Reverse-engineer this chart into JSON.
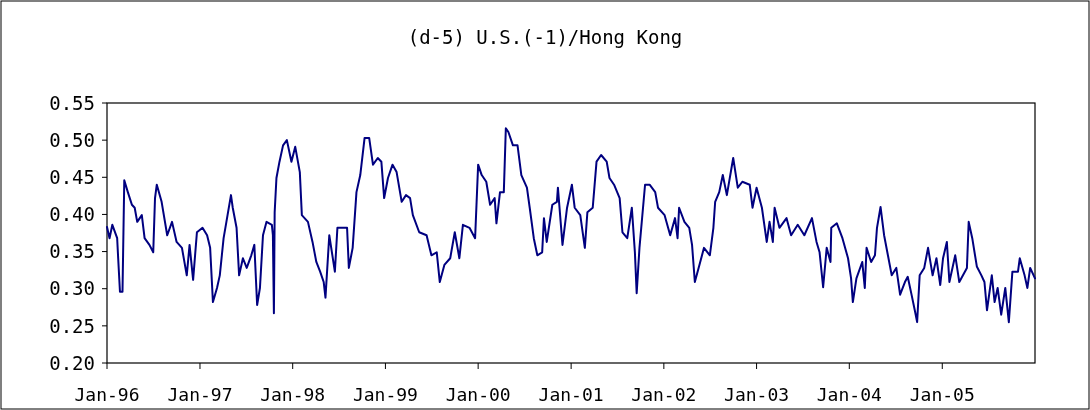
{
  "chart_data": {
    "type": "line",
    "title": "(d-5) U.S.(-1)/Hong Kong",
    "series": [
      {
        "color": "#000080",
        "x": [
          "1996-01-01",
          "1996-01-11",
          "1996-01-22",
          "1996-02-10",
          "1996-02-14",
          "1996-02-21",
          "1996-03-02",
          "1996-03-09",
          "1996-03-23",
          "1996-04-08",
          "1996-04-19",
          "1996-04-29",
          "1996-05-17",
          "1996-05-28",
          "1996-06-16",
          "1996-07-01",
          "1996-07-08",
          "1996-07-15",
          "1996-08-03",
          "1996-08-25",
          "1996-09-13",
          "1996-10-01",
          "1996-10-22",
          "1996-11-10",
          "1996-11-21",
          "1996-12-05",
          "1996-12-20",
          "1997-01-11",
          "1997-01-29",
          "1997-02-10",
          "1997-02-21",
          "1997-03-09",
          "1997-03-20",
          "1997-04-04",
          "1997-04-15",
          "1997-05-03",
          "1997-05-10",
          "1997-05-25",
          "1997-06-04",
          "1997-06-19",
          "1997-07-04",
          "1997-07-22",
          "1997-08-03",
          "1997-08-14",
          "1997-08-25",
          "1997-09-06",
          "1997-09-20",
          "1997-10-11",
          "1997-10-15",
          "1997-10-19",
          "1997-10-22",
          "1997-10-29",
          "1997-11-10",
          "1997-11-24",
          "1997-12-09",
          "1997-12-27",
          "1998-01-11",
          "1998-01-29",
          "1998-02-06",
          "1998-03-02",
          "1998-03-20",
          "1998-04-04",
          "1998-04-19",
          "1998-05-03",
          "1998-05-10",
          "1998-05-25",
          "1998-06-16",
          "1998-06-26",
          "1998-08-03",
          "1998-08-10",
          "1998-08-25",
          "1998-09-09",
          "1998-09-24",
          "1998-10-11",
          "1998-10-29",
          "1998-11-13",
          "1998-12-02",
          "1998-12-16",
          "1998-12-27",
          "1999-01-11",
          "1999-01-29",
          "1999-02-14",
          "1999-03-06",
          "1999-03-23",
          "1999-04-08",
          "1999-04-19",
          "1999-05-14",
          "1999-06-12",
          "1999-07-01",
          "1999-07-22",
          "1999-08-03",
          "1999-08-21",
          "1999-09-13",
          "1999-10-01",
          "1999-10-19",
          "1999-11-02",
          "1999-11-28",
          "1999-12-20",
          "2000-01-01",
          "2000-01-15",
          "2000-02-02",
          "2000-02-17",
          "2000-03-06",
          "2000-03-13",
          "2000-03-27",
          "2000-04-11",
          "2000-04-19",
          "2000-04-29",
          "2000-05-17",
          "2000-06-04",
          "2000-06-19",
          "2000-07-11",
          "2000-07-22",
          "2000-08-07",
          "2000-08-21",
          "2000-09-09",
          "2000-09-16",
          "2000-09-27",
          "2000-10-19",
          "2000-11-06",
          "2000-11-10",
          "2000-11-28",
          "2000-12-16",
          "2001-01-04",
          "2001-01-15",
          "2001-02-06",
          "2001-02-24",
          "2001-03-06",
          "2001-03-27",
          "2001-04-11",
          "2001-04-29",
          "2001-05-21",
          "2001-06-01",
          "2001-06-19",
          "2001-07-11",
          "2001-07-22",
          "2001-08-10",
          "2001-08-28",
          "2001-09-09",
          "2001-09-16",
          "2001-09-27",
          "2001-10-19",
          "2001-11-06",
          "2001-11-28",
          "2001-12-09",
          "2002-01-04",
          "2002-01-26",
          "2002-02-14",
          "2002-02-24",
          "2002-03-02",
          "2002-03-23",
          "2002-04-11",
          "2002-04-22",
          "2002-05-03",
          "2002-05-21",
          "2002-06-08",
          "2002-07-01",
          "2002-07-15",
          "2002-07-22",
          "2002-08-07",
          "2002-08-21",
          "2002-09-06",
          "2002-10-01",
          "2002-10-19",
          "2002-11-06",
          "2002-12-05",
          "2002-12-16",
          "2003-01-01",
          "2003-01-22",
          "2003-02-10",
          "2003-02-21",
          "2003-03-06",
          "2003-03-13",
          "2003-04-01",
          "2003-04-29",
          "2003-05-17",
          "2003-06-12",
          "2003-07-08",
          "2003-08-07",
          "2003-08-25",
          "2003-09-06",
          "2003-09-20",
          "2003-10-04",
          "2003-10-19",
          "2003-10-22",
          "2003-11-13",
          "2003-12-05",
          "2003-12-27",
          "2004-01-08",
          "2004-01-15",
          "2004-01-29",
          "2004-02-21",
          "2004-03-02",
          "2004-03-09",
          "2004-03-27",
          "2004-04-11",
          "2004-04-19",
          "2004-05-03",
          "2004-05-17",
          "2004-06-01",
          "2004-06-16",
          "2004-07-04",
          "2004-07-19",
          "2004-08-07",
          "2004-08-18",
          "2004-09-02",
          "2004-09-16",
          "2004-09-24",
          "2004-10-04",
          "2004-10-22",
          "2004-11-06",
          "2004-11-24",
          "2004-12-09",
          "2004-12-24",
          "2005-01-04",
          "2005-01-19",
          "2005-01-29",
          "2005-02-21",
          "2005-03-09",
          "2005-04-08",
          "2005-04-15",
          "2005-04-29",
          "2005-05-17",
          "2005-06-04",
          "2005-06-16",
          "2005-06-26",
          "2005-07-15",
          "2005-07-26",
          "2005-08-07",
          "2005-08-21",
          "2005-09-06",
          "2005-09-20",
          "2005-10-04",
          "2005-10-26",
          "2005-11-02",
          "2005-11-21",
          "2005-12-02",
          "2005-12-13",
          "2006-01-01"
        ],
        "values": [
          0.383,
          0.368,
          0.386,
          0.368,
          0.341,
          0.296,
          0.296,
          0.446,
          0.43,
          0.413,
          0.409,
          0.39,
          0.399,
          0.368,
          0.359,
          0.349,
          0.422,
          0.44,
          0.417,
          0.372,
          0.39,
          0.363,
          0.355,
          0.318,
          0.359,
          0.312,
          0.376,
          0.382,
          0.372,
          0.355,
          0.282,
          0.301,
          0.318,
          0.368,
          0.39,
          0.426,
          0.409,
          0.382,
          0.318,
          0.341,
          0.328,
          0.345,
          0.359,
          0.278,
          0.301,
          0.372,
          0.39,
          0.386,
          0.372,
          0.267,
          0.403,
          0.449,
          0.471,
          0.493,
          0.5,
          0.471,
          0.491,
          0.457,
          0.399,
          0.39,
          0.363,
          0.336,
          0.323,
          0.309,
          0.288,
          0.372,
          0.323,
          0.382,
          0.382,
          0.328,
          0.355,
          0.43,
          0.453,
          0.503,
          0.503,
          0.467,
          0.476,
          0.471,
          0.422,
          0.449,
          0.467,
          0.457,
          0.417,
          0.426,
          0.422,
          0.399,
          0.376,
          0.372,
          0.345,
          0.349,
          0.309,
          0.332,
          0.341,
          0.376,
          0.341,
          0.386,
          0.382,
          0.368,
          0.467,
          0.453,
          0.444,
          0.413,
          0.422,
          0.388,
          0.43,
          0.43,
          0.516,
          0.511,
          0.493,
          0.493,
          0.453,
          0.436,
          0.409,
          0.368,
          0.345,
          0.349,
          0.395,
          0.363,
          0.413,
          0.417,
          0.436,
          0.359,
          0.409,
          0.44,
          0.409,
          0.399,
          0.355,
          0.403,
          0.409,
          0.471,
          0.48,
          0.471,
          0.449,
          0.44,
          0.422,
          0.376,
          0.368,
          0.409,
          0.349,
          0.294,
          0.355,
          0.44,
          0.44,
          0.43,
          0.409,
          0.399,
          0.372,
          0.395,
          0.368,
          0.409,
          0.39,
          0.382,
          0.359,
          0.309,
          0.332,
          0.355,
          0.345,
          0.382,
          0.417,
          0.43,
          0.453,
          0.426,
          0.476,
          0.436,
          0.444,
          0.44,
          0.409,
          0.436,
          0.409,
          0.363,
          0.39,
          0.363,
          0.409,
          0.382,
          0.395,
          0.372,
          0.386,
          0.372,
          0.395,
          0.363,
          0.349,
          0.302,
          0.355,
          0.336,
          0.382,
          0.388,
          0.368,
          0.341,
          0.314,
          0.282,
          0.314,
          0.336,
          0.301,
          0.355,
          0.336,
          0.345,
          0.382,
          0.41,
          0.372,
          0.345,
          0.318,
          0.328,
          0.292,
          0.309,
          0.316,
          0.292,
          0.269,
          0.255,
          0.318,
          0.328,
          0.355,
          0.318,
          0.341,
          0.305,
          0.341,
          0.363,
          0.309,
          0.345,
          0.309,
          0.328,
          0.39,
          0.368,
          0.33,
          0.318,
          0.309,
          0.271,
          0.318,
          0.282,
          0.301,
          0.265,
          0.301,
          0.255,
          0.323,
          0.323,
          0.341,
          0.318,
          0.301,
          0.328,
          0.314
        ]
      }
    ],
    "xlim": [
      "1996-01-01",
      "2006-01-01"
    ],
    "xticks": [
      {
        "value": "1996-01-01",
        "label": "Jan-96"
      },
      {
        "value": "1997-01-01",
        "label": "Jan-97"
      },
      {
        "value": "1998-01-01",
        "label": "Jan-98"
      },
      {
        "value": "1999-01-01",
        "label": "Jan-99"
      },
      {
        "value": "2000-01-01",
        "label": "Jan-00"
      },
      {
        "value": "2001-01-01",
        "label": "Jan-01"
      },
      {
        "value": "2002-01-01",
        "label": "Jan-02"
      },
      {
        "value": "2003-01-01",
        "label": "Jan-03"
      },
      {
        "value": "2004-01-01",
        "label": "Jan-04"
      },
      {
        "value": "2005-01-01",
        "label": "Jan-05"
      }
    ],
    "ylim": [
      0.2,
      0.55
    ],
    "yticks": [
      {
        "value": 0.2,
        "label": "0.20"
      },
      {
        "value": 0.25,
        "label": "0.25"
      },
      {
        "value": 0.3,
        "label": "0.30"
      },
      {
        "value": 0.35,
        "label": "0.35"
      },
      {
        "value": 0.4,
        "label": "0.40"
      },
      {
        "value": 0.45,
        "label": "0.45"
      },
      {
        "value": 0.5,
        "label": "0.50"
      },
      {
        "value": 0.55,
        "label": "0.55"
      }
    ],
    "grid": false,
    "legend": false,
    "marker": "none",
    "line_style": "solid"
  }
}
